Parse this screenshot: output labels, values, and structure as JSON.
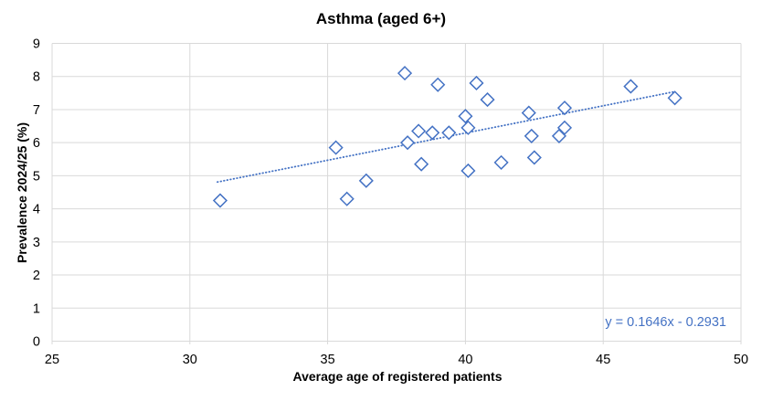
{
  "chart_data": {
    "type": "scatter",
    "title": "Asthma (aged 6+)",
    "xlabel": "Average age of registered patients",
    "ylabel": "Prevalence 2024/25 (%)",
    "xlim": [
      25,
      50
    ],
    "ylim": [
      0,
      9
    ],
    "x_ticks": [
      25,
      30,
      35,
      40,
      45,
      50
    ],
    "y_ticks": [
      0,
      1,
      2,
      3,
      4,
      5,
      6,
      7,
      8,
      9
    ],
    "grid": true,
    "legend": "none",
    "points": [
      [
        31.1,
        4.25
      ],
      [
        35.3,
        5.85
      ],
      [
        35.7,
        4.3
      ],
      [
        36.4,
        4.85
      ],
      [
        37.8,
        8.1
      ],
      [
        37.9,
        6.0
      ],
      [
        38.3,
        6.35
      ],
      [
        38.4,
        5.35
      ],
      [
        38.8,
        6.3
      ],
      [
        39.0,
        7.75
      ],
      [
        39.4,
        6.3
      ],
      [
        40.0,
        6.8
      ],
      [
        40.1,
        6.45
      ],
      [
        40.1,
        5.15
      ],
      [
        40.4,
        7.8
      ],
      [
        40.8,
        7.3
      ],
      [
        41.3,
        5.4
      ],
      [
        42.3,
        6.9
      ],
      [
        42.4,
        6.2
      ],
      [
        42.5,
        5.55
      ],
      [
        43.4,
        6.2
      ],
      [
        43.6,
        7.05
      ],
      [
        43.6,
        6.45
      ],
      [
        46.0,
        7.7
      ],
      [
        47.6,
        7.35
      ]
    ],
    "trendline": {
      "label": "y = 0.1646x - 0.2931",
      "slope": 0.1646,
      "intercept": -0.2931,
      "x_start": 31.0,
      "x_end": 47.6,
      "style": "dotted"
    },
    "colors": {
      "marker": "#4472C4",
      "trendline": "#4472C4",
      "equation_text": "#4472C4",
      "grid": "#D9D9D9",
      "text": "#000000"
    }
  }
}
